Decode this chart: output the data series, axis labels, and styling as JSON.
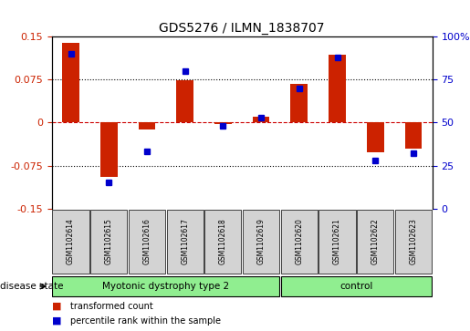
{
  "title": "GDS5276 / ILMN_1838707",
  "samples": [
    "GSM1102614",
    "GSM1102615",
    "GSM1102616",
    "GSM1102617",
    "GSM1102618",
    "GSM1102619",
    "GSM1102620",
    "GSM1102621",
    "GSM1102622",
    "GSM1102623"
  ],
  "transformed_count": [
    0.138,
    -0.095,
    -0.013,
    0.073,
    -0.003,
    0.01,
    0.068,
    0.118,
    -0.052,
    -0.045
  ],
  "percentile_rank": [
    90,
    15,
    33,
    80,
    48,
    53,
    70,
    88,
    28,
    32
  ],
  "disease_groups": [
    {
      "label": "Myotonic dystrophy type 2",
      "start": 0,
      "end": 5
    },
    {
      "label": "control",
      "start": 6,
      "end": 9
    }
  ],
  "group_color": "#90EE90",
  "ylim_left": [
    -0.15,
    0.15
  ],
  "ylim_right": [
    0,
    100
  ],
  "yticks_left": [
    -0.15,
    -0.075,
    0,
    0.075,
    0.15
  ],
  "ytick_labels_left": [
    "-0.15",
    "-0.075",
    "0",
    "0.075",
    "0.15"
  ],
  "yticks_right": [
    0,
    25,
    50,
    75,
    100
  ],
  "ytick_labels_right": [
    "0",
    "25",
    "50",
    "75",
    "100%"
  ],
  "bar_color": "#CC2200",
  "dot_color": "#0000CC",
  "zero_line_color": "#CC0000",
  "grid_color": "#000000",
  "bg_color": "#FFFFFF",
  "label_color_left": "#CC2200",
  "label_color_right": "#0000CC",
  "cell_color": "#D3D3D3",
  "disease_state_label": "disease state",
  "legend_items": [
    {
      "label": "transformed count",
      "color": "#CC2200"
    },
    {
      "label": "percentile rank within the sample",
      "color": "#0000CC"
    }
  ]
}
